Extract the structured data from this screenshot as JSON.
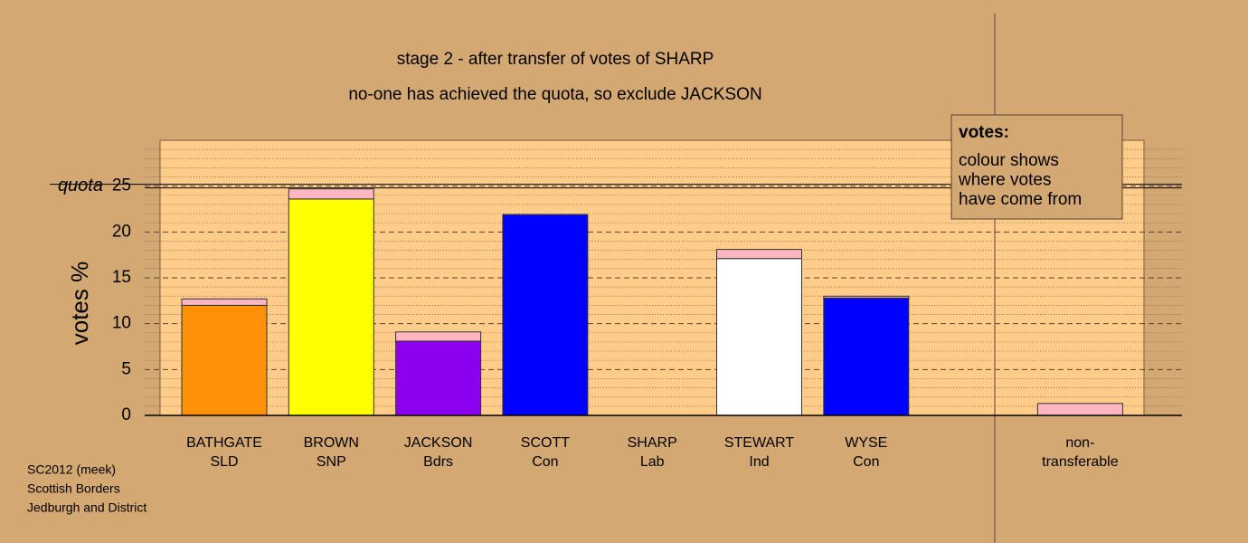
{
  "chart_data": {
    "type": "bar",
    "stacked": true,
    "title": "stage 2 - after transfer of votes of SHARP",
    "subtitle": "no-one has achieved the quota, so exclude JACKSON",
    "y_label": "votes %",
    "categories": [
      [
        "BATHGATE",
        "SLD"
      ],
      [
        "BROWN",
        "SNP"
      ],
      [
        "JACKSON",
        "Bdrs"
      ],
      [
        "SCOTT",
        "Con"
      ],
      [
        "SHARP",
        "Lab"
      ],
      [
        "STEWART",
        "Ind"
      ],
      [
        "WYSE",
        "Con"
      ],
      [
        "non-",
        "transferable"
      ]
    ],
    "series": [
      {
        "colors": [
          "#ff9109",
          "#ffff00",
          "#8b00ee",
          "#0000ff",
          "#0000ff",
          "#ffffff",
          "#0000ff",
          "#ffb6c1"
        ],
        "values": [
          12.0,
          23.6,
          8.1,
          21.9,
          0,
          17.1,
          12.8,
          0
        ]
      },
      {
        "color": "#ffb6c1",
        "values": [
          0.7,
          1.1,
          1.0,
          0,
          0,
          1.0,
          0.2,
          1.3
        ]
      }
    ],
    "ylim": [
      0,
      30
    ],
    "yticks": [
      0,
      5,
      10,
      15,
      20,
      25
    ],
    "yminorticks": [
      1,
      2,
      3,
      4,
      6,
      7,
      8,
      9,
      11,
      12,
      13,
      14,
      16,
      17,
      18,
      19,
      21,
      22,
      23,
      24,
      26,
      27,
      28,
      29
    ],
    "grid": true,
    "quota": 25,
    "quota_label": "quota",
    "legend": {
      "title": "votes:",
      "lines": [
        "colour shows",
        "where votes",
        "have come from"
      ]
    },
    "footnote": [
      "SC2012 (meek)",
      "Scottish Borders",
      "Jedburgh and District"
    ]
  }
}
